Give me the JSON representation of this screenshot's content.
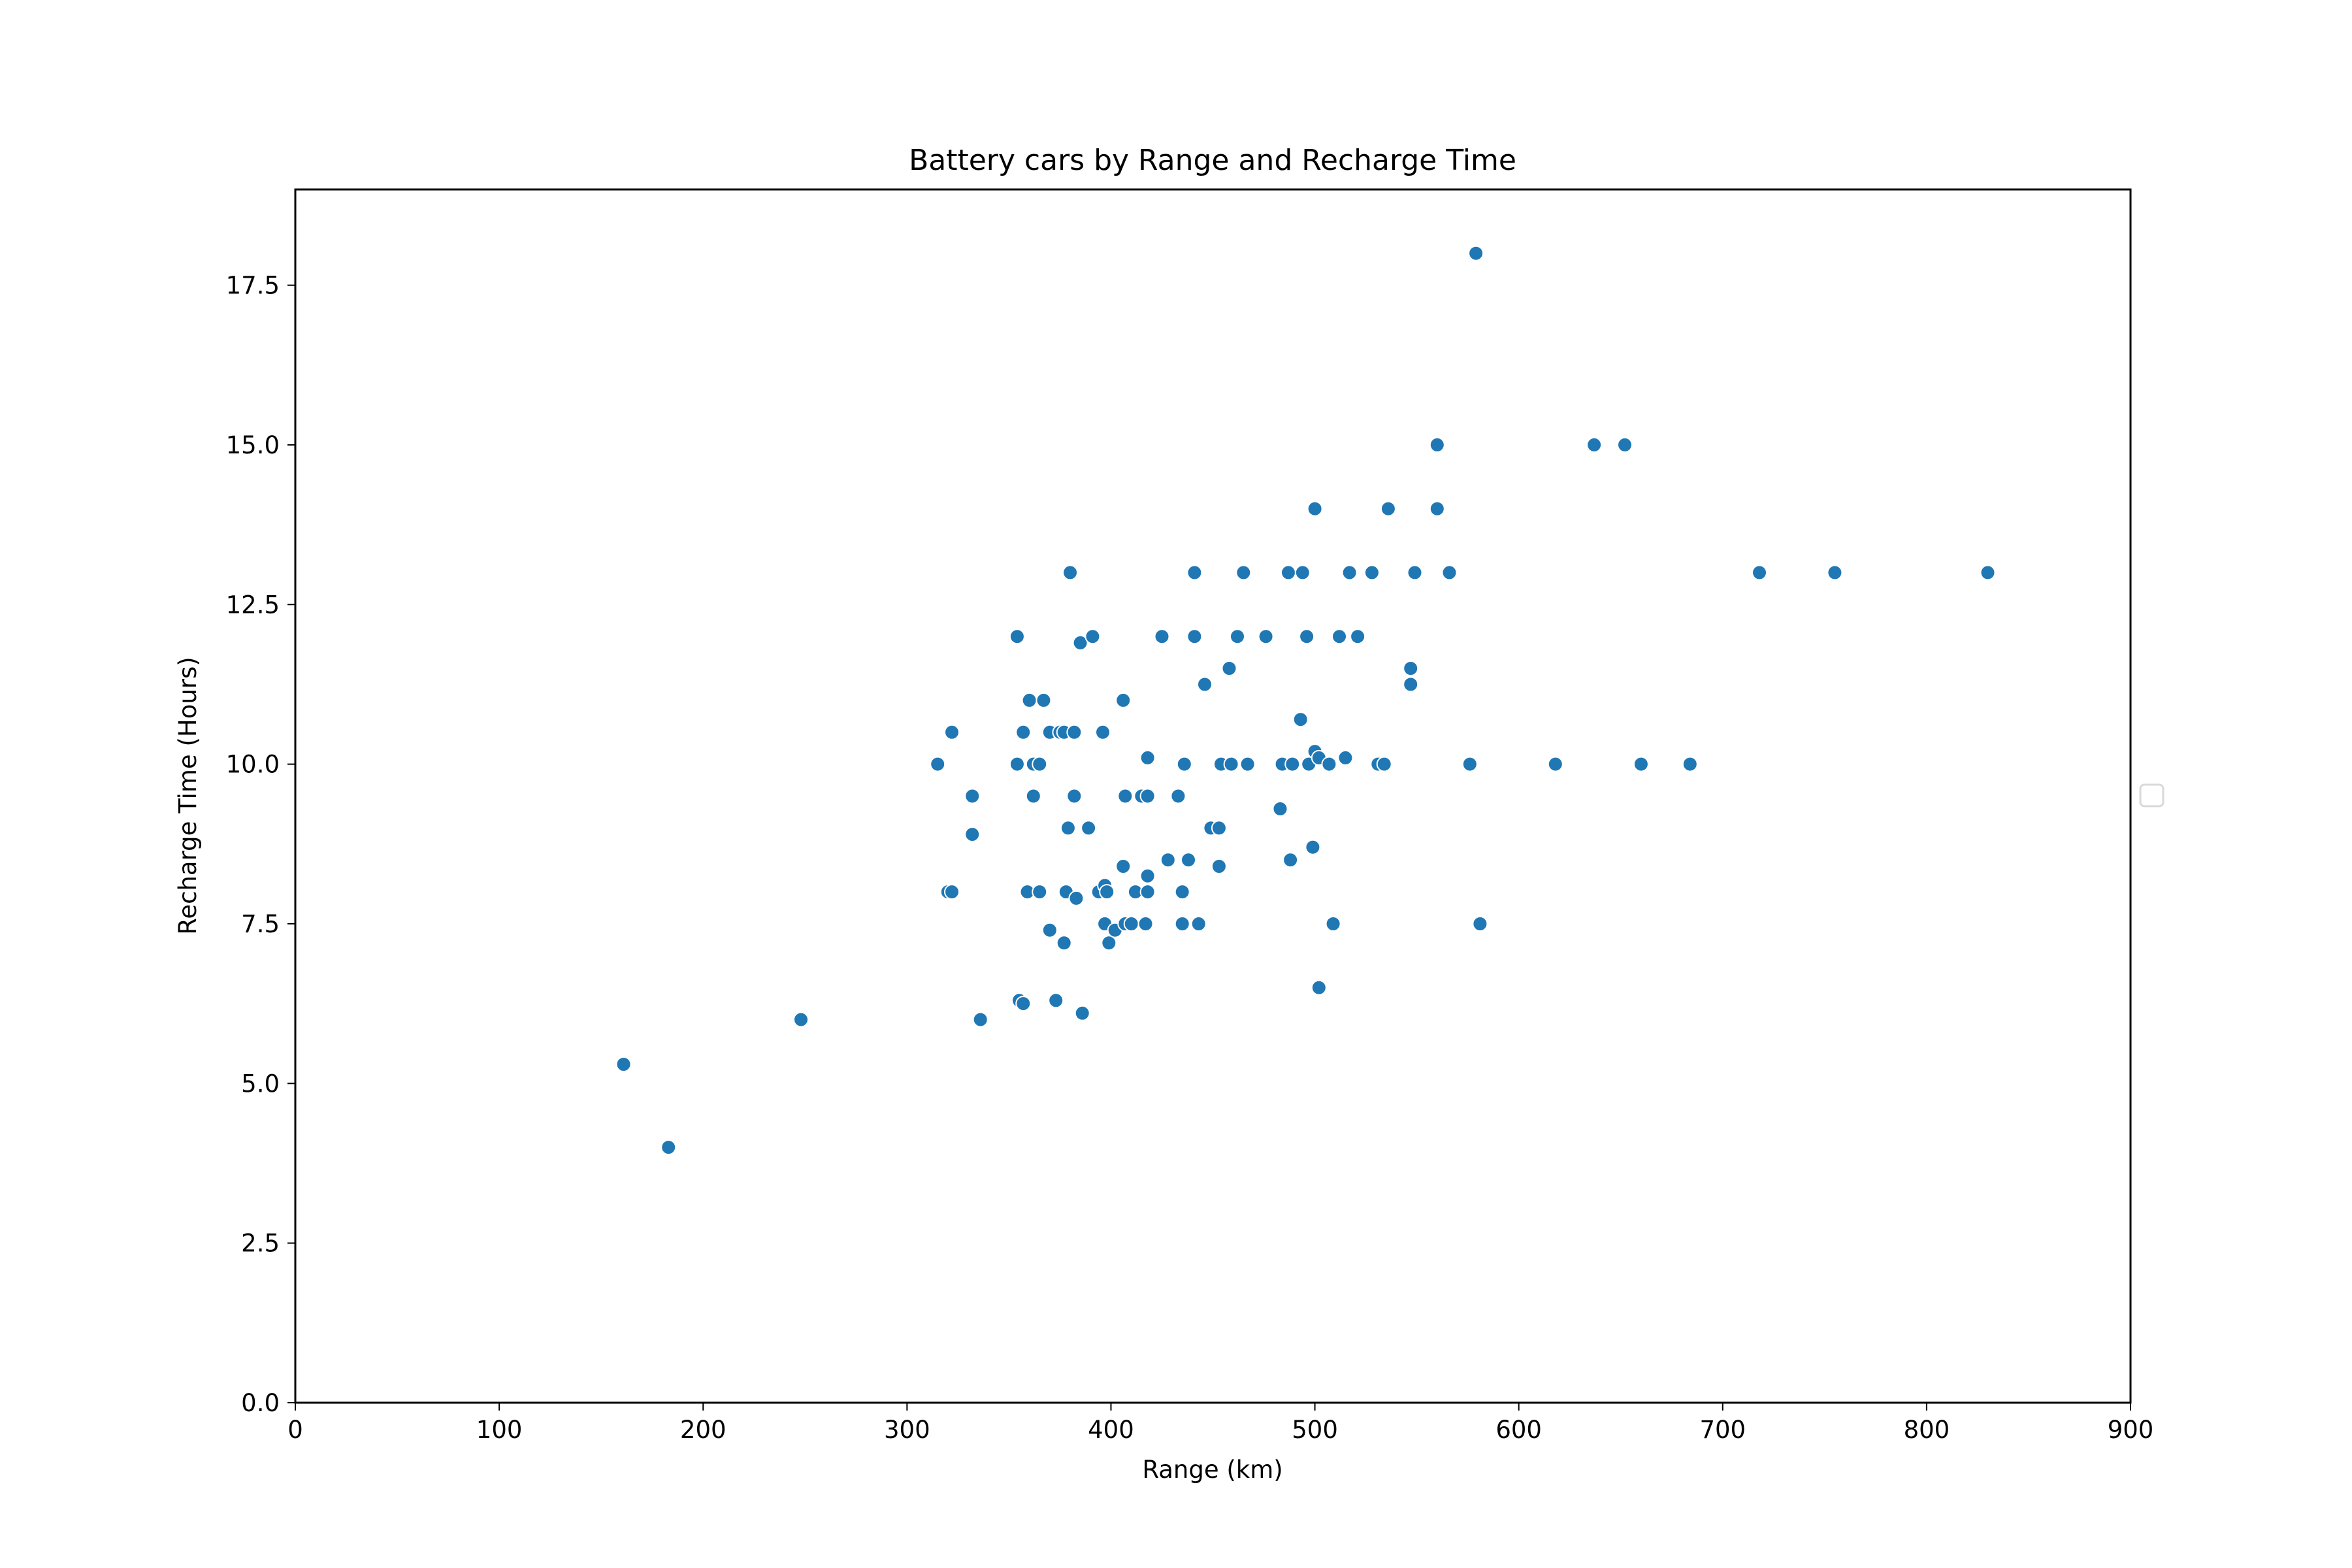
{
  "chart_data": {
    "type": "scatter",
    "title": "Battery cars by Range and Recharge Time",
    "xlabel": "Range (km)",
    "ylabel": "Recharge Time (Hours)",
    "xlim": [
      0,
      900
    ],
    "ylim": [
      0,
      19
    ],
    "xticks": [
      0,
      100,
      200,
      300,
      400,
      500,
      600,
      700,
      800,
      900
    ],
    "xtick_labels": [
      "0",
      "100",
      "200",
      "300",
      "400",
      "500",
      "600",
      "700",
      "800",
      "900"
    ],
    "yticks": [
      0,
      2.5,
      5,
      7.5,
      10,
      12.5,
      15,
      17.5
    ],
    "ytick_labels": [
      "0.0",
      "2.5",
      "5.0",
      "7.5",
      "10.0",
      "12.5",
      "15.0",
      "17.5"
    ],
    "grid": false,
    "legend": "right",
    "marker_color": "#1f77b4",
    "points": [
      [
        161,
        5.3
      ],
      [
        183,
        4.0
      ],
      [
        248,
        6.0
      ],
      [
        315,
        10.0
      ],
      [
        320,
        8.0
      ],
      [
        322,
        8.0
      ],
      [
        322,
        10.5
      ],
      [
        332,
        9.5
      ],
      [
        332,
        8.9
      ],
      [
        336,
        6.0
      ],
      [
        354,
        12.0
      ],
      [
        354,
        10.0
      ],
      [
        355,
        6.3
      ],
      [
        357,
        10.5
      ],
      [
        357,
        6.25
      ],
      [
        359,
        8.0
      ],
      [
        360,
        11.0
      ],
      [
        362,
        9.5
      ],
      [
        362,
        10.0
      ],
      [
        365,
        10.0
      ],
      [
        365,
        8.0
      ],
      [
        367,
        11.0
      ],
      [
        370,
        10.5
      ],
      [
        370,
        7.4
      ],
      [
        373,
        6.3
      ],
      [
        375,
        10.5
      ],
      [
        377,
        10.5
      ],
      [
        377,
        7.2
      ],
      [
        378,
        8.0
      ],
      [
        379,
        9.0
      ],
      [
        380,
        13.0
      ],
      [
        382,
        10.5
      ],
      [
        382,
        9.5
      ],
      [
        383,
        7.9
      ],
      [
        385,
        11.9
      ],
      [
        386,
        6.1
      ],
      [
        389,
        9.0
      ],
      [
        391,
        12.0
      ],
      [
        394,
        8.0
      ],
      [
        396,
        10.5
      ],
      [
        397,
        8.1
      ],
      [
        397,
        7.5
      ],
      [
        398,
        8.0
      ],
      [
        399,
        7.2
      ],
      [
        402,
        7.4
      ],
      [
        406,
        11.0
      ],
      [
        406,
        8.4
      ],
      [
        407,
        7.5
      ],
      [
        407,
        9.5
      ],
      [
        410,
        7.5
      ],
      [
        412,
        8.0
      ],
      [
        415,
        9.5
      ],
      [
        417,
        7.5
      ],
      [
        418,
        10.1
      ],
      [
        418,
        9.5
      ],
      [
        418,
        8.25
      ],
      [
        418,
        8.0
      ],
      [
        425,
        12.0
      ],
      [
        428,
        8.5
      ],
      [
        433,
        9.5
      ],
      [
        435,
        8.0
      ],
      [
        435,
        7.5
      ],
      [
        436,
        10.0
      ],
      [
        438,
        8.5
      ],
      [
        441,
        13.0
      ],
      [
        441,
        12.0
      ],
      [
        443,
        7.5
      ],
      [
        446,
        11.25
      ],
      [
        449,
        9.0
      ],
      [
        453,
        9.0
      ],
      [
        453,
        8.4
      ],
      [
        454,
        10.0
      ],
      [
        458,
        11.5
      ],
      [
        459,
        10.0
      ],
      [
        462,
        12.0
      ],
      [
        465,
        13.0
      ],
      [
        467,
        10.0
      ],
      [
        476,
        12.0
      ],
      [
        483,
        9.3
      ],
      [
        484,
        10.0
      ],
      [
        487,
        13.0
      ],
      [
        488,
        8.5
      ],
      [
        489,
        10.0
      ],
      [
        493,
        10.7
      ],
      [
        494,
        13.0
      ],
      [
        496,
        12.0
      ],
      [
        497,
        10.0
      ],
      [
        499,
        8.7
      ],
      [
        500,
        10.2
      ],
      [
        500,
        14.0
      ],
      [
        502,
        6.5
      ],
      [
        502,
        10.1
      ],
      [
        507,
        10.0
      ],
      [
        509,
        7.5
      ],
      [
        512,
        12.0
      ],
      [
        515,
        10.1
      ],
      [
        517,
        13.0
      ],
      [
        521,
        12.0
      ],
      [
        528,
        13.0
      ],
      [
        531,
        10.0
      ],
      [
        534,
        10.0
      ],
      [
        536,
        14.0
      ],
      [
        547,
        11.5
      ],
      [
        547,
        11.25
      ],
      [
        549,
        13.0
      ],
      [
        560,
        15.0
      ],
      [
        560,
        14.0
      ],
      [
        566,
        13.0
      ],
      [
        576,
        10.0
      ],
      [
        579,
        18.0
      ],
      [
        581,
        7.5
      ],
      [
        618,
        10.0
      ],
      [
        637,
        15.0
      ],
      [
        652,
        15.0
      ],
      [
        660,
        10.0
      ],
      [
        684,
        10.0
      ],
      [
        718,
        13.0
      ],
      [
        755,
        13.0
      ],
      [
        830,
        13.0
      ]
    ]
  }
}
